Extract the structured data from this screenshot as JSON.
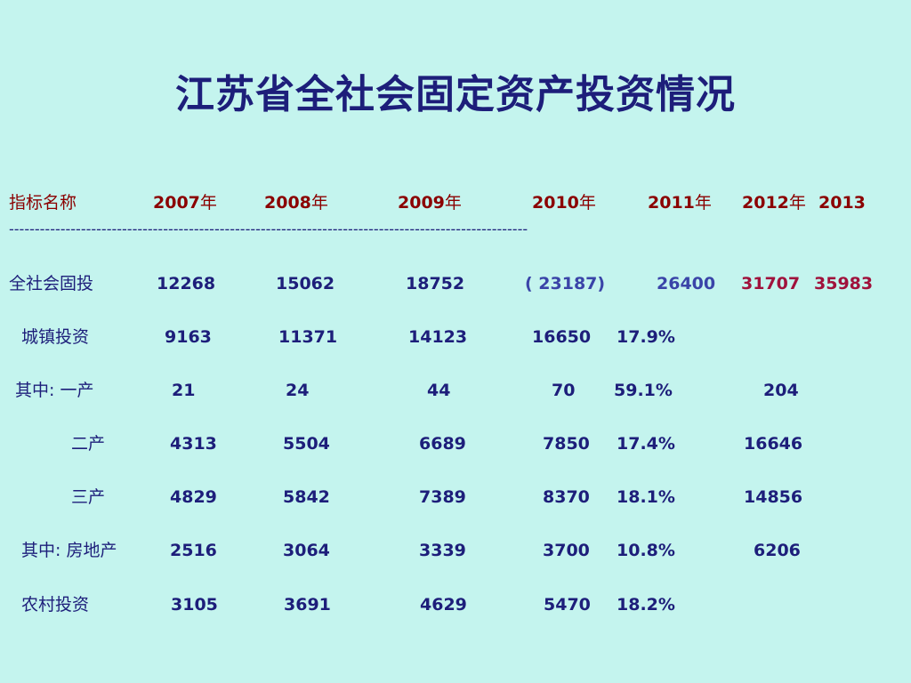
{
  "title": "江苏省全社会固定资产投资情况",
  "header": {
    "name": "指标名称",
    "years": [
      {
        "num": "2007",
        "suffix": "年"
      },
      {
        "num": "2008",
        "suffix": "年"
      },
      {
        "num": "2009",
        "suffix": "年"
      },
      {
        "num": "2010",
        "suffix": "年"
      },
      {
        "num": "2011",
        "suffix": "年"
      },
      {
        "num": "2012",
        "suffix": "年"
      },
      {
        "num": "2013",
        "suffix": ""
      }
    ]
  },
  "separator": "-----------------------------------------------------------------------------------------------------",
  "rows": {
    "total": {
      "label": "全社会固投",
      "v2007": "12268",
      "v2008": "15062",
      "v2009": "18752",
      "v2010": "( 23187)",
      "v2011": "26400",
      "v2012": "31707",
      "v2013": "35983"
    },
    "urban": {
      "label": "城镇投资",
      "v2007": "9163",
      "v2008": "11371",
      "v2009": "14123",
      "v2010": "16650",
      "growth": "17.9%"
    },
    "primary": {
      "label": "其中: 一产",
      "v2007": "21",
      "v2008": "24",
      "v2009": "44",
      "v2010": "70",
      "growth": "59.1%",
      "v2012": "204"
    },
    "secondary": {
      "label": "二产",
      "v2007": "4313",
      "v2008": "5504",
      "v2009": "6689",
      "v2010": "7850",
      "growth": "17.4%",
      "v2012": "16646"
    },
    "tertiary": {
      "label": "三产",
      "v2007": "4829",
      "v2008": "5842",
      "v2009": "7389",
      "v2010": "8370",
      "growth": "18.1%",
      "v2012": "14856"
    },
    "realestate": {
      "label": "其中: 房地产",
      "v2007": "2516",
      "v2008": "3064",
      "v2009": "3339",
      "v2010": "3700",
      "growth": "10.8%",
      "v2012": "6206"
    },
    "rural": {
      "label": "农村投资",
      "v2007": "3105",
      "v2008": "3691",
      "v2009": "4629",
      "v2010": "5470",
      "growth": "18.2%"
    }
  }
}
